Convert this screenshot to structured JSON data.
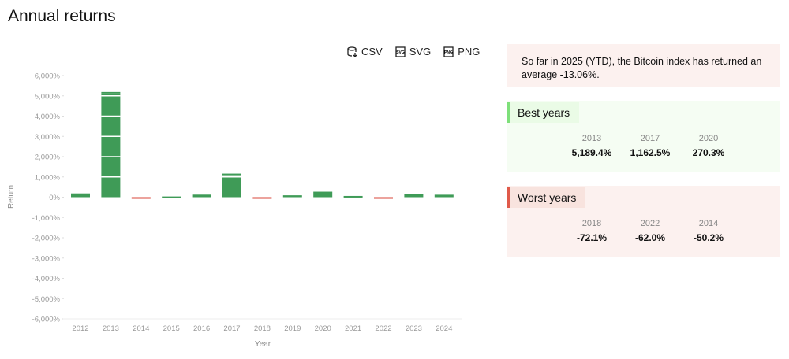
{
  "title": "Annual returns",
  "exports": [
    {
      "label": "CSV",
      "icon": "database-download-icon"
    },
    {
      "label": "SVG",
      "icon": "svg-file-icon"
    },
    {
      "label": "PNG",
      "icon": "png-file-icon"
    }
  ],
  "ytd_text": "So far in 2025 (YTD), the Bitcoin index has returned an average -13.06%.",
  "best": {
    "title": "Best years",
    "items": [
      {
        "year": "2013",
        "value": "5,189.4%"
      },
      {
        "year": "2017",
        "value": "1,162.5%"
      },
      {
        "year": "2020",
        "value": "270.3%"
      }
    ]
  },
  "worst": {
    "title": "Worst years",
    "items": [
      {
        "year": "2018",
        "value": "-72.1%"
      },
      {
        "year": "2022",
        "value": "-62.0%"
      },
      {
        "year": "2014",
        "value": "-50.2%"
      }
    ]
  },
  "colors": {
    "positive": "#3f9b57",
    "negative": "#d9473b",
    "best_accent": "#7ee07a",
    "worst_accent": "#e05a4a"
  },
  "chart_data": {
    "type": "bar",
    "xlabel": "Year",
    "ylabel": "Return",
    "categories": [
      "2012",
      "2013",
      "2014",
      "2015",
      "2016",
      "2017",
      "2018",
      "2019",
      "2020",
      "2021",
      "2022",
      "2023",
      "2024"
    ],
    "values": [
      186,
      5189.4,
      -50.2,
      35,
      125,
      1162.5,
      -72.1,
      92,
      270.3,
      60,
      -62.0,
      156,
      121
    ],
    "ylim": [
      -6000,
      6000
    ],
    "yticks": [
      6000,
      5000,
      4000,
      3000,
      2000,
      1000,
      0,
      -1000,
      -2000,
      -3000,
      -4000,
      -5000,
      -6000
    ],
    "ytick_labels": [
      "6,000%",
      "5,000%",
      "4,000%",
      "3,000%",
      "2,000%",
      "1,000%",
      "0%",
      "-1,000%",
      "-2,000%",
      "-3,000%",
      "-4,000%",
      "-5,000%",
      "-6,000%"
    ],
    "grid": false
  }
}
